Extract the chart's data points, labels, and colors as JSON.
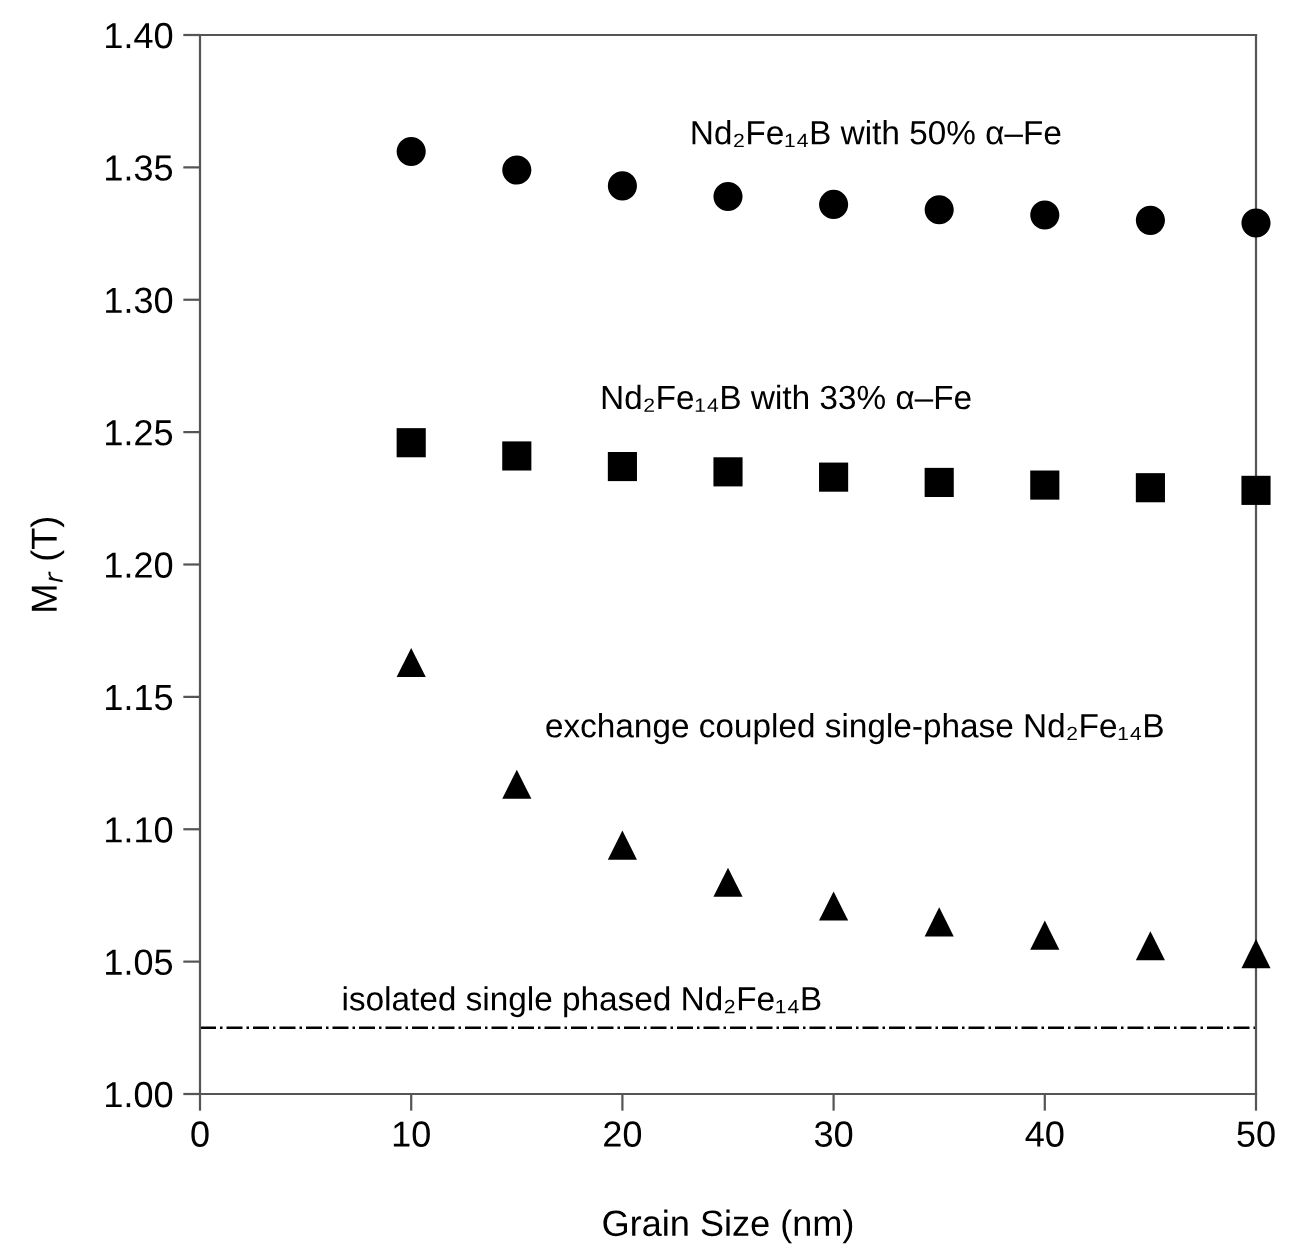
{
  "chart_data": {
    "type": "scatter",
    "xlabel": "Grain Size (nm)",
    "ylabel": "M$_{r}$ (T)",
    "x": [
      10,
      15,
      20,
      25,
      30,
      35,
      40,
      45,
      50
    ],
    "series": [
      {
        "name": "Nd₂Fe₁₄B with 50% α–Fe",
        "color": "#000000",
        "marker": "circle",
        "values": [
          1.356,
          1.349,
          1.343,
          1.339,
          1.336,
          1.334,
          1.332,
          1.33,
          1.329
        ]
      },
      {
        "name": "Nd₂Fe₁₄B with 33% α–Fe",
        "color": "#000000",
        "marker": "square",
        "values": [
          1.246,
          1.241,
          1.237,
          1.235,
          1.233,
          1.231,
          1.23,
          1.229,
          1.228
        ]
      },
      {
        "name": "exchange coupled single-phase Nd₂Fe₁₄B",
        "color": "#000000",
        "marker": "triangle",
        "values": [
          1.163,
          1.117,
          1.094,
          1.08,
          1.071,
          1.065,
          1.06,
          1.056,
          1.053
        ]
      }
    ],
    "ref_lines": [
      {
        "axis": "y",
        "value": 1.025,
        "label": "isolated single phased Nd₂Fe₁₄B",
        "color": "#000000",
        "line_style": "dashdot"
      }
    ],
    "xlim": [
      0,
      50
    ],
    "xticks": [
      0,
      10,
      20,
      30,
      40,
      50
    ],
    "ylim": [
      1.0,
      1.4
    ],
    "yticks": [
      {
        "value": 1.0,
        "label": "1.00"
      },
      {
        "value": 1.05,
        "label": "1.05"
      },
      {
        "value": 1.1,
        "label": "1.10"
      },
      {
        "value": 1.15,
        "label": "1.15"
      },
      {
        "value": 1.2,
        "label": "1.20"
      },
      {
        "value": 1.25,
        "label": "1.25"
      },
      {
        "value": 1.3,
        "label": "1.30"
      },
      {
        "value": 1.35,
        "label": "1.35"
      },
      {
        "value": 1.4,
        "label": "1.40"
      }
    ],
    "grid": false,
    "legend": false
  }
}
